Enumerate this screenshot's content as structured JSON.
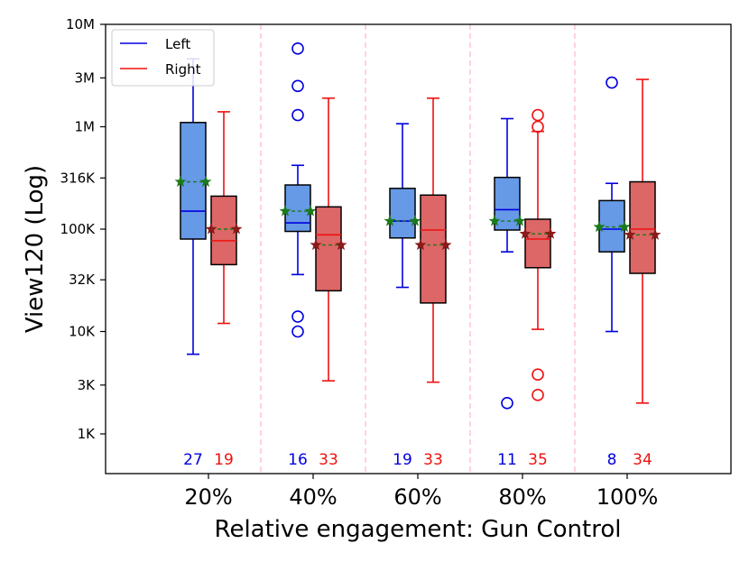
{
  "chart_data": {
    "type": "boxplot",
    "title": "",
    "xlabel": "Relative engagement: Gun Control",
    "ylabel": "View120 (Log)",
    "yscale": "log",
    "ylim": [
      400,
      10000000
    ],
    "yticks": [
      {
        "value": 1000,
        "label": "1K"
      },
      {
        "value": 3000,
        "label": "3K"
      },
      {
        "value": 10000,
        "label": "10K"
      },
      {
        "value": 32000,
        "label": "32K"
      },
      {
        "value": 100000,
        "label": "100K"
      },
      {
        "value": 316000,
        "label": "316K"
      },
      {
        "value": 1000000,
        "label": "1M"
      },
      {
        "value": 3000000,
        "label": "3M"
      },
      {
        "value": 10000000,
        "label": "10M"
      }
    ],
    "categories": [
      "20%",
      "40%",
      "60%",
      "80%",
      "100%"
    ],
    "legend": {
      "position": "top-left",
      "entries": [
        {
          "name": "Left",
          "color": "#0000dd"
        },
        {
          "name": "Right",
          "color": "#ee1111"
        }
      ]
    },
    "colors": {
      "left_line": "#0000dd",
      "left_fill": "#6699e6",
      "right_line": "#ee1111",
      "right_fill": "#dd6666",
      "mean_marker": "#1a7a1a",
      "mean_marker_right": "#8b1a1a",
      "divider": "#ffb6c1"
    },
    "series": [
      {
        "name": "Left",
        "boxes": [
          {
            "whislo": 6000,
            "q1": 80000,
            "med": 150000,
            "q3": 1100000,
            "whishi": 4600000,
            "mean": 290000,
            "fliers": [],
            "count": 27
          },
          {
            "whislo": 36000,
            "q1": 95000,
            "med": 115000,
            "q3": 270000,
            "whishi": 420000,
            "mean": 150000,
            "fliers": [
              14000,
              10000,
              1300000,
              2500000,
              5800000
            ],
            "count": 16
          },
          {
            "whislo": 27000,
            "q1": 82000,
            "med": 120000,
            "q3": 250000,
            "whishi": 1070000,
            "mean": 120000,
            "fliers": [],
            "count": 19
          },
          {
            "whislo": 60000,
            "q1": 98000,
            "med": 155000,
            "q3": 320000,
            "whishi": 1200000,
            "mean": 120000,
            "fliers": [
              2000
            ],
            "count": 11
          },
          {
            "whislo": 10000,
            "q1": 60000,
            "med": 100000,
            "q3": 190000,
            "whishi": 280000,
            "mean": 105000,
            "fliers": [
              2700000
            ],
            "count": 8
          }
        ]
      },
      {
        "name": "Right",
        "boxes": [
          {
            "whislo": 12000,
            "q1": 45000,
            "med": 77000,
            "q3": 210000,
            "whishi": 1400000,
            "mean": 100000,
            "fliers": [],
            "count": 19
          },
          {
            "whislo": 3300,
            "q1": 25000,
            "med": 88000,
            "q3": 165000,
            "whishi": 1900000,
            "mean": 70000,
            "fliers": [],
            "count": 33
          },
          {
            "whislo": 3200,
            "q1": 19000,
            "med": 98000,
            "q3": 215000,
            "whishi": 1900000,
            "mean": 70000,
            "fliers": [],
            "count": 33
          },
          {
            "whislo": 10500,
            "q1": 42000,
            "med": 80000,
            "q3": 125000,
            "whishi": 900000,
            "mean": 90000,
            "fliers": [
              2400,
              3800,
              1000000,
              1300000
            ],
            "count": 35
          },
          {
            "whislo": 2000,
            "q1": 37000,
            "med": 100000,
            "q3": 290000,
            "whishi": 2900000,
            "mean": 88000,
            "fliers": [],
            "count": 34
          }
        ]
      }
    ]
  }
}
